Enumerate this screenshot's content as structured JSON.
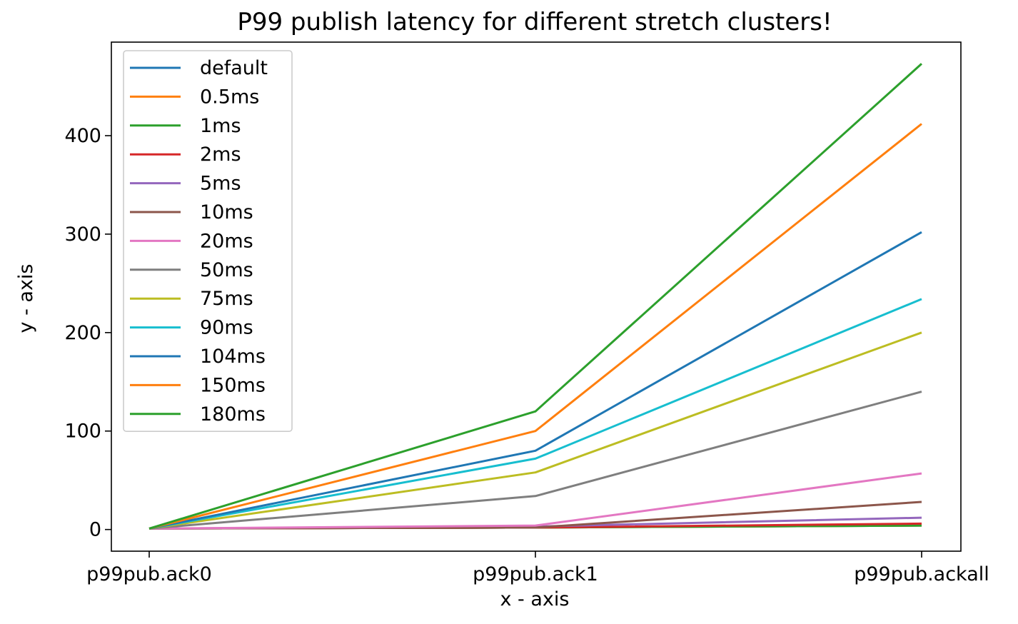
{
  "chart_data": {
    "type": "line",
    "title": "P99 publish latency for different stretch clusters!",
    "xlabel": "x - axis",
    "ylabel": "y - axis",
    "categories": [
      "p99pub.ack0",
      "p99pub.ack1",
      "p99pub.ackall"
    ],
    "ylim": [
      -22,
      495
    ],
    "yticks": [
      0,
      100,
      200,
      300,
      400
    ],
    "grid": false,
    "legend_position": "top-left",
    "series": [
      {
        "name": "default",
        "color": "#1f77b4",
        "values": [
          1,
          2,
          4
        ]
      },
      {
        "name": "0.5ms",
        "color": "#ff7f0e",
        "values": [
          1,
          2,
          4
        ]
      },
      {
        "name": "1ms",
        "color": "#2ca02c",
        "values": [
          1,
          2,
          4
        ]
      },
      {
        "name": "2ms",
        "color": "#d62728",
        "values": [
          1,
          2,
          6
        ]
      },
      {
        "name": "5ms",
        "color": "#9467bd",
        "values": [
          1,
          3,
          12
        ]
      },
      {
        "name": "10ms",
        "color": "#8c564b",
        "values": [
          1,
          2,
          28
        ]
      },
      {
        "name": "20ms",
        "color": "#e377c2",
        "values": [
          1,
          4,
          57
        ]
      },
      {
        "name": "50ms",
        "color": "#7f7f7f",
        "values": [
          1,
          34,
          140
        ]
      },
      {
        "name": "75ms",
        "color": "#bcbd22",
        "values": [
          1,
          58,
          200
        ]
      },
      {
        "name": "90ms",
        "color": "#17becf",
        "values": [
          1,
          72,
          234
        ]
      },
      {
        "name": "104ms",
        "color": "#1f77b4",
        "values": [
          1,
          80,
          302
        ]
      },
      {
        "name": "150ms",
        "color": "#ff7f0e",
        "values": [
          1,
          100,
          412
        ]
      },
      {
        "name": "180ms",
        "color": "#2ca02c",
        "values": [
          1,
          120,
          473
        ]
      }
    ]
  }
}
